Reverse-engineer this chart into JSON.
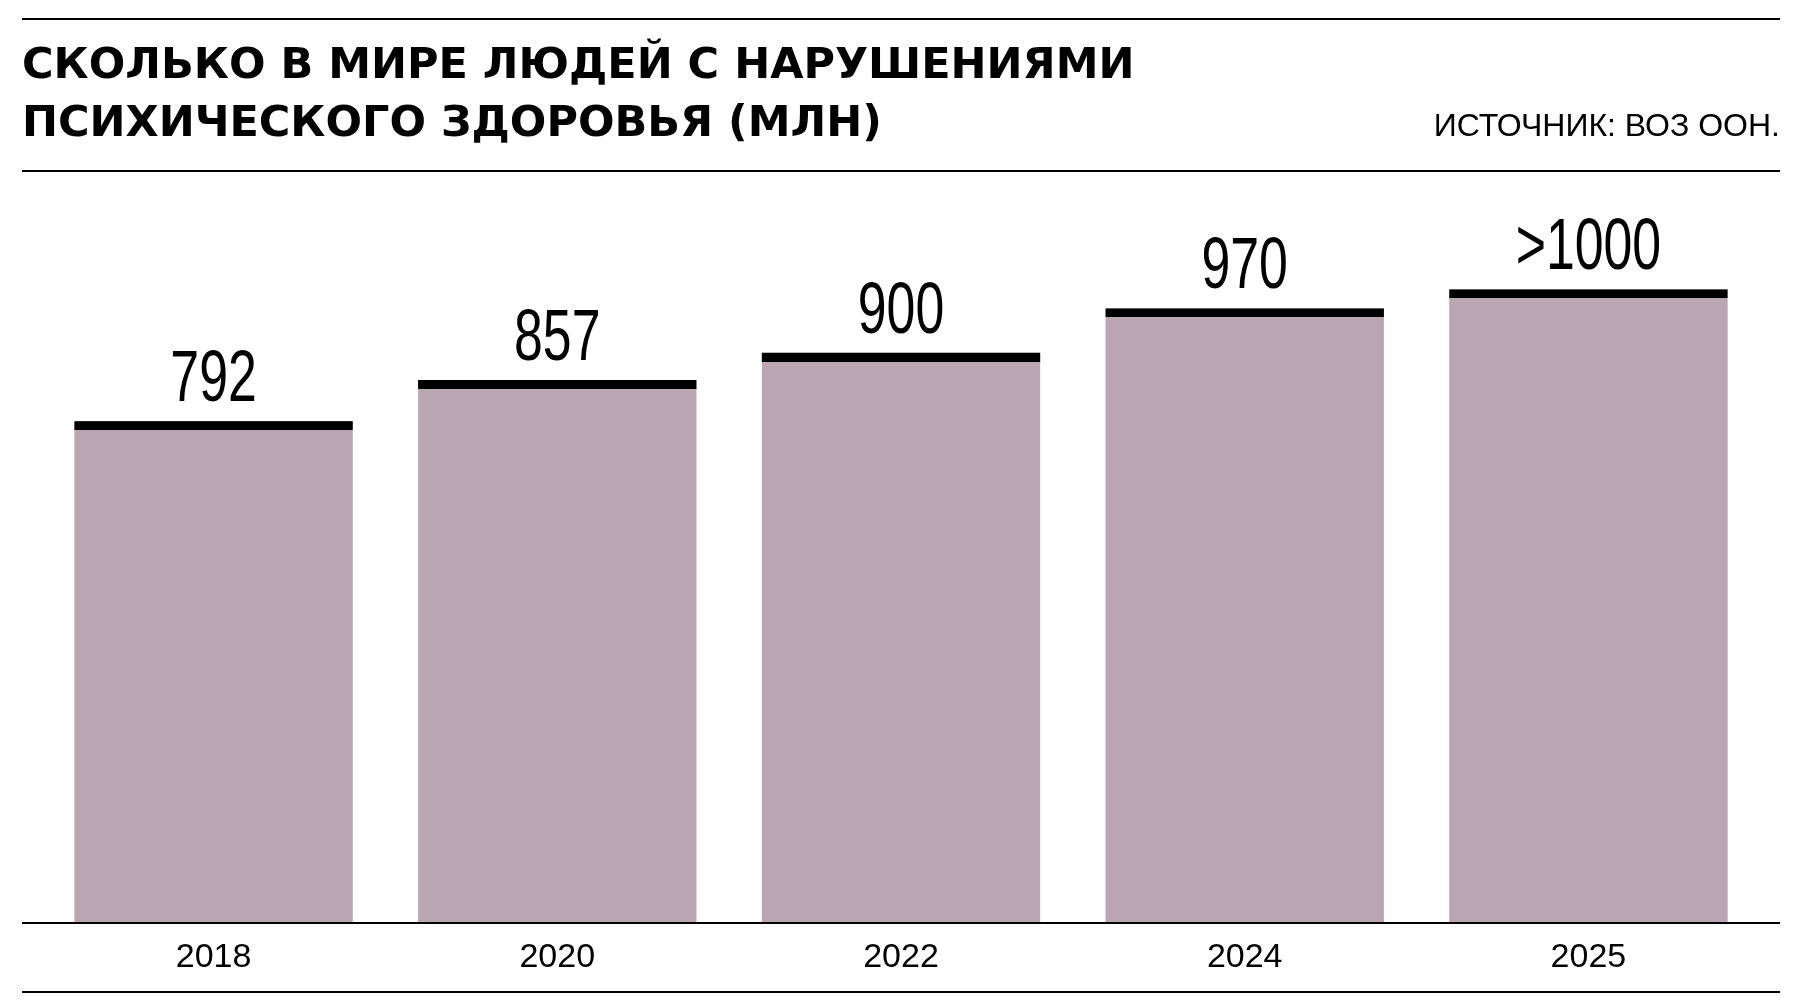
{
  "chart_data": {
    "type": "bar",
    "title": "СКОЛЬКО В МИРЕ ЛЮДЕЙ С НАРУШЕНИЯМИ ПСИХИЧЕСКОГО ЗДОРОВЬЯ (МЛН)",
    "annotations": [
      "ИСТОЧНИК: ВОЗ ООН."
    ],
    "categories": [
      "2018",
      "2020",
      "2022",
      "2024",
      "2025"
    ],
    "values": [
      792,
      857,
      900,
      970,
      1000
    ],
    "value_labels": [
      "792",
      "857",
      "900",
      "970",
      ">1000"
    ],
    "color": "#b9a6b1"
  }
}
